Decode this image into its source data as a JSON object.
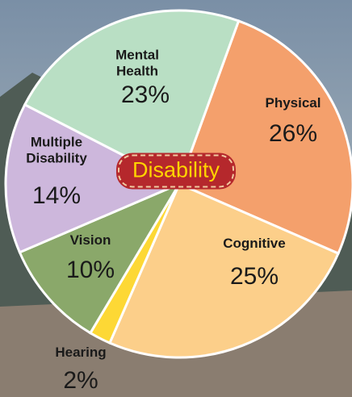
{
  "chart_data": {
    "type": "pie",
    "center_label": "Disability",
    "categories": [
      "Physical",
      "Cognitive",
      "Hearing",
      "Vision",
      "Multiple Disability",
      "Mental Health"
    ],
    "values": [
      26,
      25,
      2,
      10,
      14,
      23
    ],
    "value_labels": [
      "26%",
      "25%",
      "2%",
      "10%",
      "14%",
      "23%"
    ],
    "colors": [
      "#f4a06c",
      "#fccf8a",
      "#fdd835",
      "#8aa86a",
      "#cdb7dc",
      "#b9dfc4"
    ]
  }
}
